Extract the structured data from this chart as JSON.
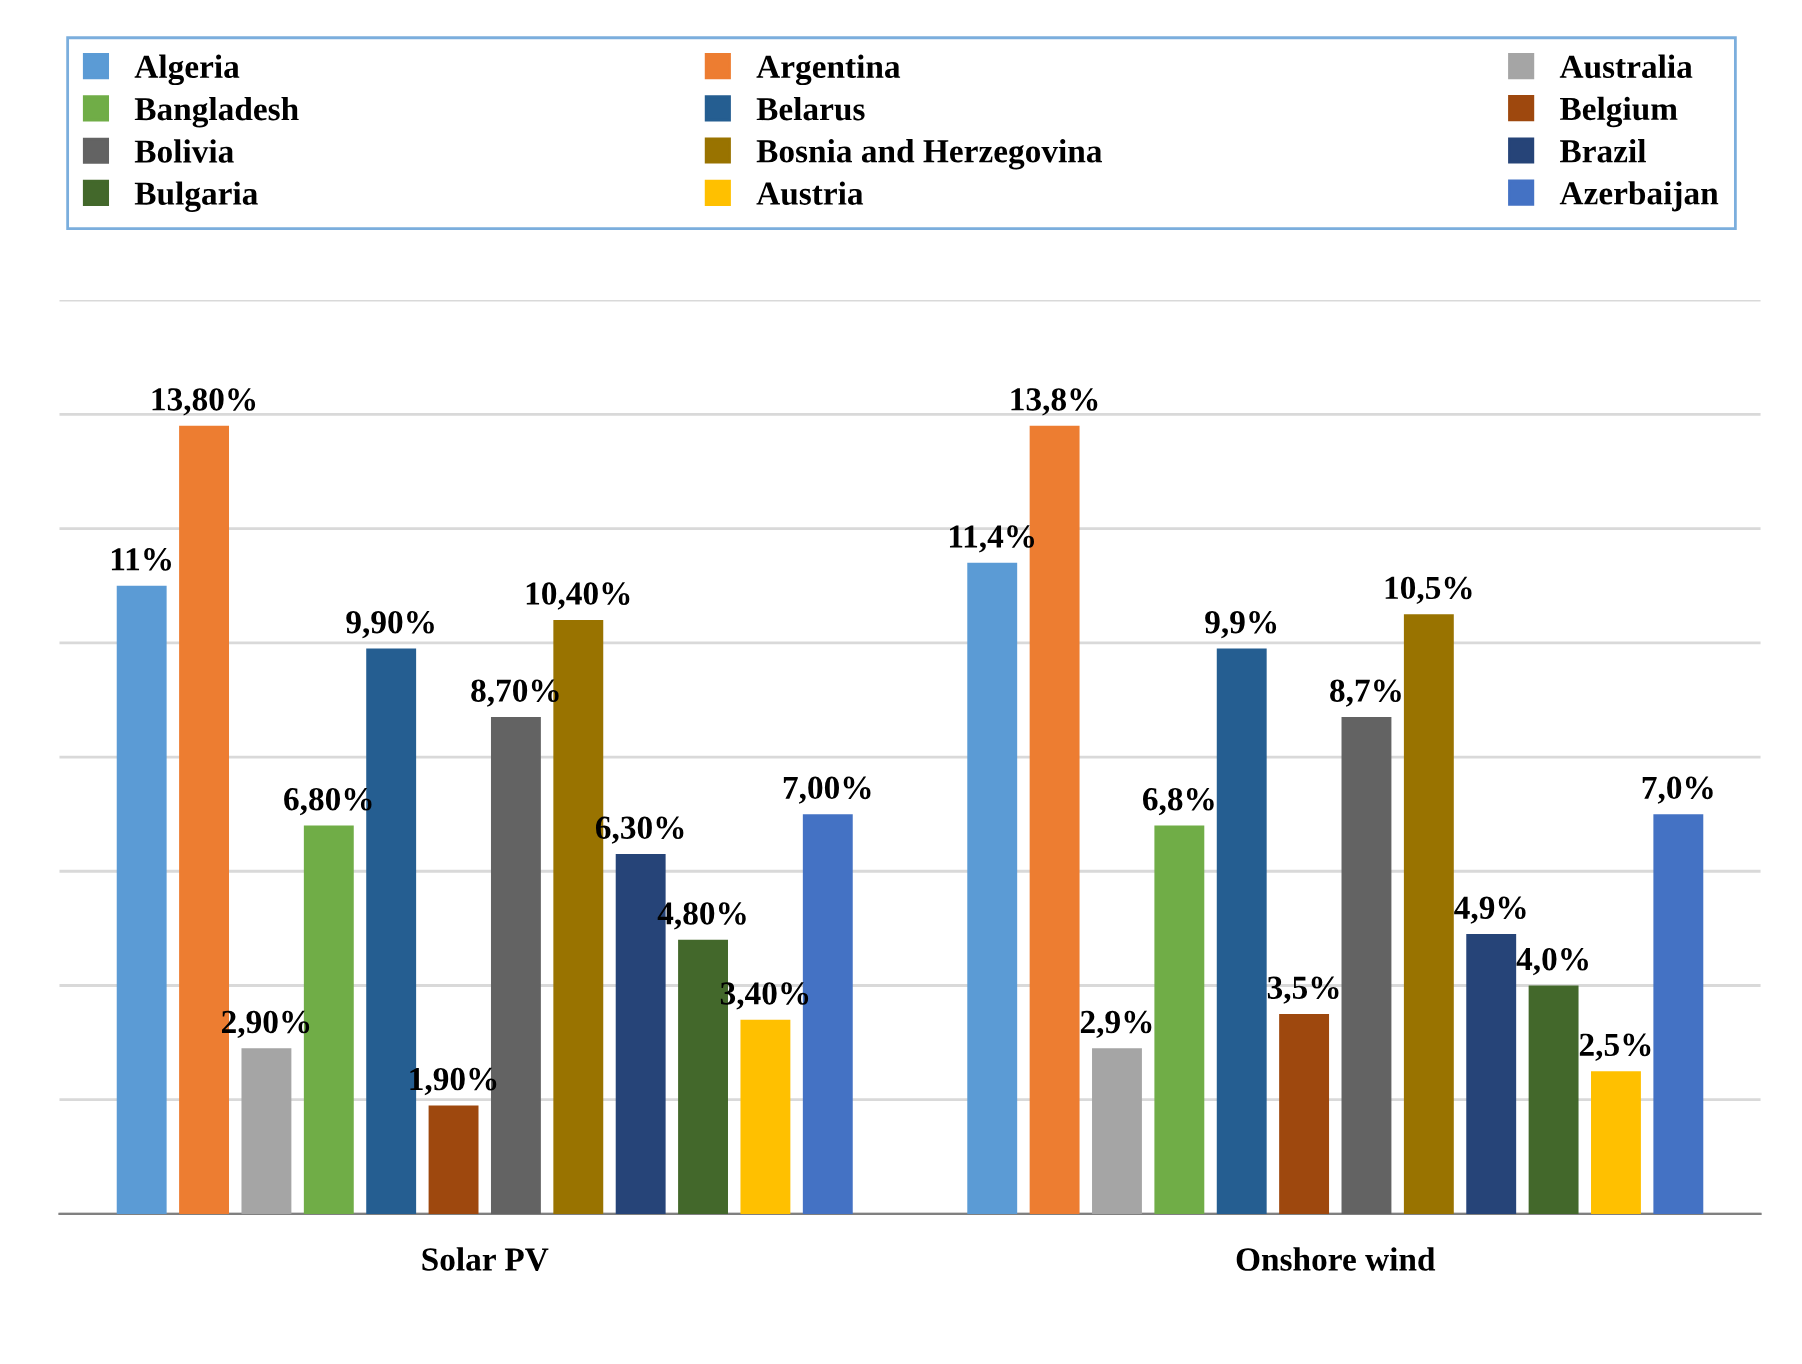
{
  "chart_data": {
    "type": "bar",
    "categories": [
      "Solar PV",
      "Onshore wind"
    ],
    "series": [
      {
        "name": "Algeria",
        "color": "#5b9bd5",
        "values": [
          11,
          11.4
        ],
        "value_labels": [
          "11%",
          "11,4%"
        ]
      },
      {
        "name": "Argentina",
        "color": "#ed7d31",
        "values": [
          13.8,
          13.8
        ],
        "value_labels": [
          "13,80%",
          "13,8%"
        ]
      },
      {
        "name": "Australia",
        "color": "#a5a5a5",
        "values": [
          2.9,
          2.9
        ],
        "value_labels": [
          "2,90%",
          "2,9%"
        ]
      },
      {
        "name": "Bangladesh",
        "color": "#70ad47",
        "values": [
          6.8,
          6.8
        ],
        "value_labels": [
          "6,80%",
          "6,8%"
        ]
      },
      {
        "name": "Belarus",
        "color": "#255e91",
        "values": [
          9.9,
          9.9
        ],
        "value_labels": [
          "9,90%",
          "9,9%"
        ]
      },
      {
        "name": "Belgium",
        "color": "#9e480e",
        "values": [
          1.9,
          3.5
        ],
        "value_labels": [
          "1,90%",
          "3,5%"
        ]
      },
      {
        "name": "Bolivia",
        "color": "#636363",
        "values": [
          8.7,
          8.7
        ],
        "value_labels": [
          "8,70%",
          "8,7%"
        ]
      },
      {
        "name": "Bosnia and Herzegovina",
        "color": "#997300",
        "values": [
          10.4,
          10.5
        ],
        "value_labels": [
          "10,40%",
          "10,5%"
        ]
      },
      {
        "name": "Brazil",
        "color": "#264478",
        "values": [
          6.3,
          4.9
        ],
        "value_labels": [
          "6,30%",
          "4,9%"
        ]
      },
      {
        "name": "Bulgaria",
        "color": "#43682b",
        "values": [
          4.8,
          4.0
        ],
        "value_labels": [
          "4,80%",
          "4,0%"
        ]
      },
      {
        "name": "Austria",
        "color": "#ffc000",
        "values": [
          3.4,
          2.5
        ],
        "value_labels": [
          "3,40%",
          "2,5%"
        ]
      },
      {
        "name": "Azerbaijan",
        "color": "#4472c4",
        "values": [
          7.0,
          7.0
        ],
        "value_labels": [
          "7,00%",
          "7,0%"
        ]
      }
    ],
    "ylim": [
      0,
      16
    ],
    "yticks": [
      {
        "value": 0,
        "label": null
      },
      {
        "value": 2,
        "label": null
      },
      {
        "value": 4,
        "label": null
      },
      {
        "value": 6,
        "label": null
      },
      {
        "value": 8,
        "label": null
      },
      {
        "value": 10,
        "label": null
      },
      {
        "value": 12,
        "label": null
      },
      {
        "value": 14,
        "label": null
      },
      {
        "value": 16,
        "label": null
      }
    ],
    "grid": "y",
    "legend": "top",
    "tick_labels": "x"
  }
}
